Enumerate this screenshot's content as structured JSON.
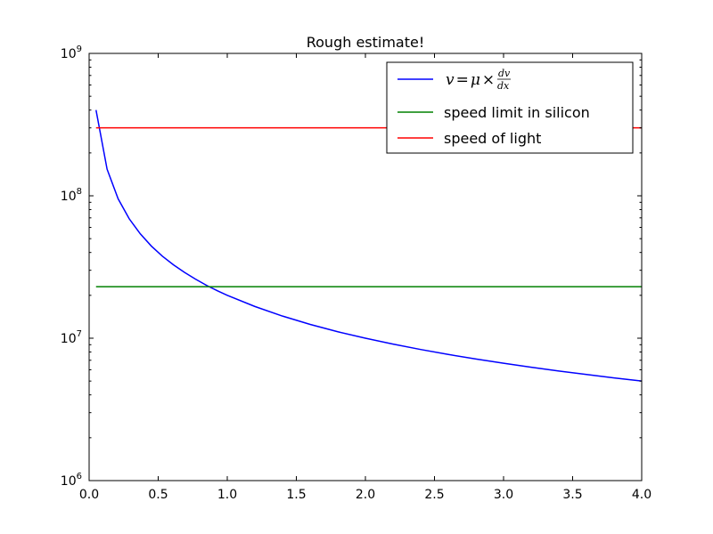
{
  "chart_data": {
    "type": "line",
    "title": "Rough estimate!",
    "xlabel": "",
    "ylabel": "",
    "xlim": [
      0,
      4
    ],
    "ylim": [
      1000000,
      1000000000
    ],
    "yscale": "log",
    "grid": false,
    "legend_position": "top-right",
    "x_ticks": [
      {
        "value": 0.0,
        "label": "0.0"
      },
      {
        "value": 0.5,
        "label": "0.5"
      },
      {
        "value": 1.0,
        "label": "1.0"
      },
      {
        "value": 1.5,
        "label": "1.5"
      },
      {
        "value": 2.0,
        "label": "2.0"
      },
      {
        "value": 2.5,
        "label": "2.5"
      },
      {
        "value": 3.0,
        "label": "3.0"
      },
      {
        "value": 3.5,
        "label": "3.5"
      },
      {
        "value": 4.0,
        "label": "4.0"
      }
    ],
    "y_ticks": [
      {
        "value": 1000000,
        "base": "10",
        "exp": "6"
      },
      {
        "value": 10000000,
        "base": "10",
        "exp": "7"
      },
      {
        "value": 100000000,
        "base": "10",
        "exp": "8"
      },
      {
        "value": 1000000000,
        "base": "10",
        "exp": "9"
      }
    ],
    "series": [
      {
        "name": "v = μ × dv/dx",
        "color": "#0000ff",
        "x": [
          0.05,
          0.13,
          0.21,
          0.29,
          0.37,
          0.45,
          0.53,
          0.61,
          0.69,
          0.77,
          0.85,
          0.93,
          1.0,
          1.2,
          1.4,
          1.6,
          1.8,
          2.0,
          2.2,
          2.4,
          2.6,
          2.8,
          3.0,
          3.2,
          3.4,
          3.6,
          3.8,
          4.0
        ],
        "y": [
          400000000,
          153800000,
          95200000,
          69000000,
          54100000,
          44400000,
          37700000,
          32800000,
          29000000,
          26000000,
          23500000,
          21500000,
          20000000,
          16700000,
          14300000,
          12500000,
          11100000,
          10000000,
          9090000,
          8330000,
          7690000,
          7140000,
          6670000,
          6250000,
          5880000,
          5560000,
          5260000,
          5000000
        ]
      },
      {
        "name": "speed limit in silicon",
        "color": "#008000",
        "x": [
          0.05,
          4.0
        ],
        "y": [
          23000000,
          23000000
        ]
      },
      {
        "name": "speed of light",
        "color": "#ff0000",
        "x": [
          0.05,
          4.0
        ],
        "y": [
          300000000,
          300000000
        ]
      }
    ]
  }
}
